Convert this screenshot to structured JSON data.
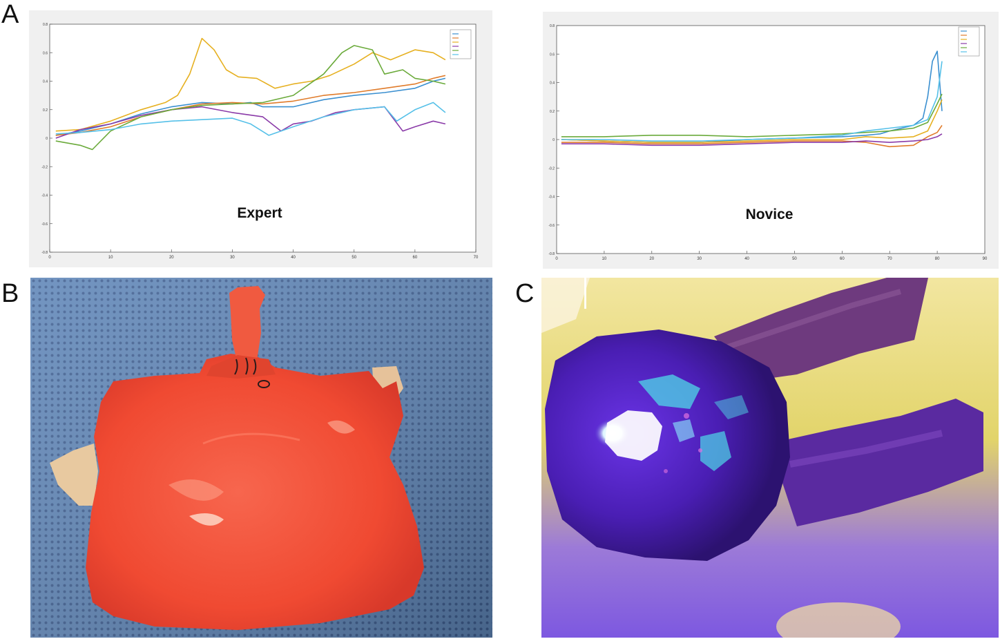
{
  "figure": {
    "panels": [
      {
        "letter": "A"
      },
      {
        "letter": "B"
      },
      {
        "letter": "C"
      }
    ]
  },
  "colors": {
    "series": [
      "#3a8fd0",
      "#e07b2a",
      "#e6b020",
      "#8a3aa8",
      "#6aaa3a",
      "#55c0e8"
    ],
    "b_tissue": "#f2503a",
    "b_drape": "#5f86b8",
    "c_background": "#e6d96a",
    "c_fluorescence": "#5a20c8"
  },
  "chart_data": [
    {
      "type": "line",
      "annotation": "Expert",
      "xlim": [
        0,
        70
      ],
      "ylim": [
        -0.8,
        0.8
      ],
      "xticks": [
        0,
        10,
        20,
        30,
        40,
        50,
        60,
        70
      ],
      "yticks": [
        -0.8,
        -0.6,
        -0.4,
        -0.2,
        0,
        0.2,
        0.4,
        0.6,
        0.8
      ],
      "legend": "top-right",
      "grid": false,
      "series": [
        {
          "x": [
            1,
            5,
            10,
            15,
            20,
            25,
            30,
            33,
            35,
            40,
            45,
            50,
            55,
            60,
            63,
            65
          ],
          "y": [
            0.02,
            0.05,
            0.1,
            0.17,
            0.22,
            0.25,
            0.24,
            0.25,
            0.22,
            0.22,
            0.27,
            0.3,
            0.32,
            0.35,
            0.4,
            0.42
          ]
        },
        {
          "x": [
            1,
            5,
            10,
            15,
            20,
            25,
            30,
            35,
            40,
            45,
            50,
            55,
            60,
            63,
            65
          ],
          "y": [
            0.02,
            0.04,
            0.08,
            0.15,
            0.2,
            0.24,
            0.25,
            0.24,
            0.26,
            0.3,
            0.32,
            0.35,
            0.38,
            0.42,
            0.44
          ]
        },
        {
          "x": [
            1,
            5,
            10,
            15,
            19,
            21,
            23,
            25,
            27,
            29,
            31,
            34,
            37,
            40,
            43,
            46,
            50,
            53,
            56,
            60,
            63,
            65
          ],
          "y": [
            0.05,
            0.06,
            0.12,
            0.2,
            0.25,
            0.3,
            0.45,
            0.7,
            0.62,
            0.48,
            0.43,
            0.42,
            0.35,
            0.38,
            0.4,
            0.44,
            0.52,
            0.6,
            0.55,
            0.62,
            0.6,
            0.55
          ]
        },
        {
          "x": [
            1,
            5,
            10,
            15,
            20,
            25,
            30,
            35,
            38,
            40,
            43,
            47,
            50,
            55,
            58,
            60,
            63,
            65
          ],
          "y": [
            0.0,
            0.06,
            0.1,
            0.16,
            0.2,
            0.22,
            0.18,
            0.15,
            0.05,
            0.1,
            0.12,
            0.18,
            0.2,
            0.22,
            0.05,
            0.08,
            0.12,
            0.1
          ]
        },
        {
          "x": [
            1,
            5,
            7,
            10,
            15,
            20,
            25,
            30,
            35,
            40,
            45,
            48,
            50,
            53,
            55,
            58,
            60,
            63,
            65
          ],
          "y": [
            -0.02,
            -0.05,
            -0.08,
            0.05,
            0.15,
            0.2,
            0.23,
            0.24,
            0.25,
            0.3,
            0.45,
            0.6,
            0.65,
            0.62,
            0.45,
            0.48,
            0.42,
            0.4,
            0.38
          ]
        },
        {
          "x": [
            1,
            5,
            10,
            15,
            20,
            25,
            30,
            33,
            36,
            40,
            45,
            50,
            55,
            57,
            60,
            63,
            65
          ],
          "y": [
            0.03,
            0.04,
            0.06,
            0.1,
            0.12,
            0.13,
            0.14,
            0.1,
            0.02,
            0.08,
            0.15,
            0.2,
            0.22,
            0.12,
            0.2,
            0.25,
            0.18
          ]
        }
      ]
    },
    {
      "type": "line",
      "annotation": "Novice",
      "xlim": [
        0,
        90
      ],
      "ylim": [
        -0.8,
        0.8
      ],
      "xticks": [
        0,
        10,
        20,
        30,
        40,
        50,
        60,
        70,
        80,
        90
      ],
      "yticks": [
        -0.8,
        -0.6,
        -0.4,
        -0.2,
        0,
        0.2,
        0.4,
        0.6,
        0.8
      ],
      "legend": "top-right",
      "grid": false,
      "series": [
        {
          "x": [
            1,
            10,
            20,
            30,
            40,
            50,
            60,
            65,
            68,
            70,
            75,
            77,
            78,
            79,
            80,
            81
          ],
          "y": [
            0.0,
            -0.01,
            -0.02,
            -0.02,
            0.0,
            0.01,
            0.02,
            0.03,
            0.04,
            0.06,
            0.1,
            0.15,
            0.3,
            0.55,
            0.62,
            0.2
          ]
        },
        {
          "x": [
            1,
            10,
            20,
            30,
            40,
            50,
            60,
            65,
            70,
            75,
            78,
            80,
            81
          ],
          "y": [
            -0.02,
            -0.02,
            -0.03,
            -0.03,
            -0.02,
            -0.01,
            -0.01,
            -0.02,
            -0.05,
            -0.04,
            0.02,
            0.05,
            0.1
          ]
        },
        {
          "x": [
            1,
            10,
            20,
            30,
            40,
            50,
            60,
            65,
            70,
            75,
            78,
            80,
            81
          ],
          "y": [
            0.0,
            -0.01,
            -0.02,
            -0.02,
            -0.01,
            0.0,
            0.0,
            0.02,
            0.01,
            0.02,
            0.06,
            0.2,
            0.28
          ]
        },
        {
          "x": [
            1,
            10,
            20,
            30,
            40,
            50,
            60,
            65,
            70,
            75,
            78,
            80,
            81
          ],
          "y": [
            -0.03,
            -0.03,
            -0.04,
            -0.04,
            -0.03,
            -0.02,
            -0.02,
            -0.01,
            -0.02,
            -0.01,
            0.0,
            0.02,
            0.04
          ]
        },
        {
          "x": [
            1,
            10,
            20,
            30,
            40,
            50,
            60,
            65,
            70,
            75,
            78,
            80,
            81
          ],
          "y": [
            0.02,
            0.02,
            0.03,
            0.03,
            0.02,
            0.03,
            0.04,
            0.05,
            0.06,
            0.08,
            0.12,
            0.25,
            0.32
          ]
        },
        {
          "x": [
            1,
            10,
            20,
            30,
            40,
            50,
            60,
            65,
            70,
            75,
            78,
            80,
            81
          ],
          "y": [
            0.0,
            0.0,
            -0.01,
            -0.01,
            0.0,
            0.01,
            0.03,
            0.06,
            0.08,
            0.1,
            0.14,
            0.3,
            0.55
          ]
        }
      ]
    }
  ]
}
